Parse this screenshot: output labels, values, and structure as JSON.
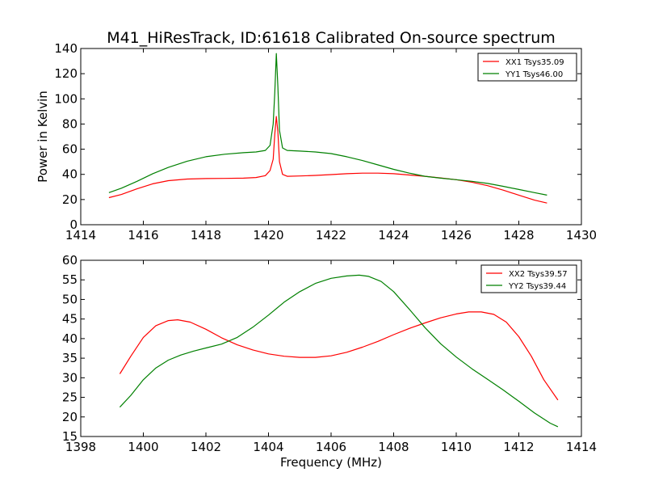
{
  "figure": {
    "title": "M41_HiResTrack, ID:61618 Calibrated On-source spectrum",
    "xlabel": "Frequency (MHz)"
  },
  "chart_data": [
    {
      "type": "line",
      "title": "M41_HiResTrack, ID:61618 Calibrated On-source spectrum",
      "xlabel": "",
      "ylabel": "Power in Kelvin",
      "xlim": [
        1414,
        1430
      ],
      "ylim": [
        0,
        140
      ],
      "xticks": [
        1414,
        1416,
        1418,
        1420,
        1422,
        1424,
        1426,
        1428,
        1430
      ],
      "yticks": [
        0,
        20,
        40,
        60,
        80,
        100,
        120,
        140
      ],
      "grid": false,
      "legend_position": "top-right",
      "series": [
        {
          "name": "XX1 Tsys35.09",
          "color": "#ff0000",
          "x": [
            1414.9,
            1415.3,
            1415.8,
            1416.3,
            1416.8,
            1417.4,
            1418.0,
            1418.6,
            1419.2,
            1419.6,
            1419.9,
            1420.05,
            1420.15,
            1420.2,
            1420.25,
            1420.3,
            1420.35,
            1420.45,
            1420.6,
            1421.0,
            1421.5,
            1422.0,
            1422.5,
            1423.0,
            1423.5,
            1424.0,
            1424.5,
            1425.0,
            1425.5,
            1426.0,
            1426.5,
            1427.0,
            1427.5,
            1428.0,
            1428.5,
            1428.9
          ],
          "y": [
            21.5,
            24.0,
            28.5,
            32.5,
            35.0,
            36.3,
            36.7,
            36.8,
            37.0,
            37.5,
            39.0,
            43.0,
            52.0,
            72.0,
            86.0,
            74.0,
            50.0,
            40.0,
            38.5,
            38.7,
            39.2,
            39.8,
            40.5,
            41.0,
            41.0,
            40.5,
            39.5,
            38.5,
            37.2,
            35.8,
            33.8,
            31.0,
            27.5,
            23.5,
            19.5,
            17.2
          ]
        },
        {
          "name": "YY1 Tsys46.00",
          "color": "#008000",
          "x": [
            1414.9,
            1415.3,
            1415.8,
            1416.3,
            1416.8,
            1417.4,
            1418.0,
            1418.6,
            1419.2,
            1419.6,
            1419.9,
            1420.05,
            1420.15,
            1420.2,
            1420.25,
            1420.3,
            1420.35,
            1420.45,
            1420.6,
            1421.0,
            1421.5,
            1422.0,
            1422.5,
            1423.0,
            1423.5,
            1424.0,
            1424.5,
            1425.0,
            1425.5,
            1426.0,
            1426.5,
            1427.0,
            1427.5,
            1428.0,
            1428.5,
            1428.9
          ],
          "y": [
            25.5,
            29.0,
            34.5,
            40.5,
            45.5,
            50.5,
            54.0,
            56.0,
            57.2,
            57.8,
            59.0,
            63.0,
            80.0,
            105.0,
            136.0,
            110.0,
            75.0,
            61.0,
            59.0,
            58.5,
            57.8,
            56.5,
            54.0,
            51.0,
            47.5,
            44.0,
            41.0,
            38.5,
            37.0,
            35.8,
            34.5,
            32.8,
            30.5,
            28.0,
            25.5,
            23.5
          ]
        }
      ]
    },
    {
      "type": "line",
      "title": "",
      "xlabel": "Frequency (MHz)",
      "ylabel": "",
      "xlim": [
        1398,
        1414
      ],
      "ylim": [
        15,
        60
      ],
      "xticks": [
        1398,
        1400,
        1402,
        1404,
        1406,
        1408,
        1410,
        1412,
        1414
      ],
      "yticks": [
        15,
        20,
        25,
        30,
        35,
        40,
        45,
        50,
        55,
        60
      ],
      "grid": false,
      "legend_position": "top-right",
      "series": [
        {
          "name": "XX2 Tsys39.57",
          "color": "#ff0000",
          "x": [
            1399.25,
            1399.6,
            1400.0,
            1400.4,
            1400.8,
            1401.1,
            1401.5,
            1402.0,
            1402.5,
            1403.0,
            1403.5,
            1404.0,
            1404.5,
            1405.0,
            1405.5,
            1406.0,
            1406.5,
            1407.0,
            1407.5,
            1408.0,
            1408.5,
            1409.0,
            1409.5,
            1410.0,
            1410.4,
            1410.8,
            1411.2,
            1411.6,
            1412.0,
            1412.4,
            1412.8,
            1413.25
          ],
          "y": [
            31.0,
            35.5,
            40.3,
            43.3,
            44.6,
            44.8,
            44.2,
            42.4,
            40.2,
            38.4,
            37.1,
            36.1,
            35.5,
            35.2,
            35.2,
            35.6,
            36.5,
            37.8,
            39.3,
            41.0,
            42.6,
            44.0,
            45.3,
            46.3,
            46.8,
            46.8,
            46.2,
            44.2,
            40.5,
            35.5,
            29.5,
            24.3
          ]
        },
        {
          "name": "YY2 Tsys39.44",
          "color": "#008000",
          "x": [
            1399.25,
            1399.6,
            1400.0,
            1400.4,
            1400.8,
            1401.2,
            1401.6,
            1402.0,
            1402.5,
            1403.0,
            1403.5,
            1404.0,
            1404.5,
            1405.0,
            1405.5,
            1406.0,
            1406.5,
            1406.9,
            1407.2,
            1407.6,
            1408.0,
            1408.5,
            1409.0,
            1409.5,
            1410.0,
            1410.5,
            1411.0,
            1411.5,
            1412.0,
            1412.5,
            1413.0,
            1413.25
          ],
          "y": [
            22.5,
            25.5,
            29.5,
            32.5,
            34.5,
            35.8,
            36.8,
            37.6,
            38.6,
            40.3,
            42.9,
            46.0,
            49.3,
            52.0,
            54.1,
            55.4,
            56.0,
            56.2,
            55.9,
            54.6,
            52.0,
            47.5,
            42.8,
            38.7,
            35.3,
            32.3,
            29.6,
            26.9,
            24.0,
            21.0,
            18.4,
            17.5
          ]
        }
      ]
    }
  ]
}
